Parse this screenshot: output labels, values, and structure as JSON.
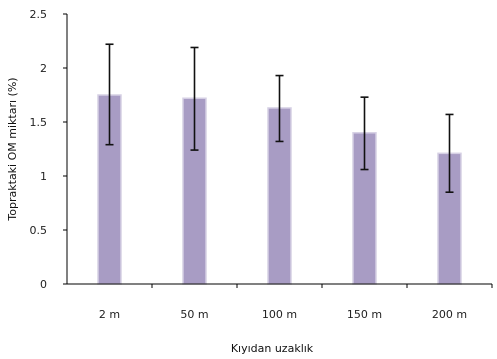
{
  "chart_data": {
    "type": "bar",
    "title": "",
    "xlabel": "Kıyıdan uzaklık",
    "ylabel": "Topraktaki OM miktarı (%)",
    "categories": [
      "2 m",
      "50 m",
      "100 m",
      "150 m",
      "200 m"
    ],
    "values": [
      1.75,
      1.72,
      1.63,
      1.4,
      1.21
    ],
    "error_low": [
      1.29,
      1.24,
      1.32,
      1.06,
      0.85
    ],
    "error_high": [
      2.22,
      2.19,
      1.93,
      1.73,
      1.57
    ],
    "ylim": [
      0,
      2.5
    ],
    "yticks": [
      "0",
      "0.5",
      "1",
      "1.5",
      "2",
      "2.5"
    ],
    "grid": false,
    "legend": "none",
    "colors": {
      "bar": "#a89cc4",
      "bar_edge": "#d6d0e4",
      "error": "#111111",
      "axis": "#000000"
    }
  }
}
